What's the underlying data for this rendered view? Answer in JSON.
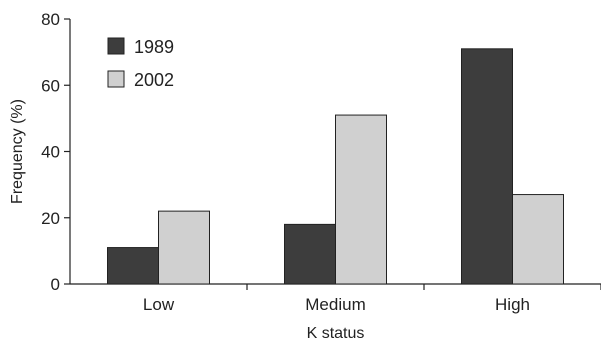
{
  "chart_data": {
    "type": "bar",
    "categories": [
      "Low",
      "Medium",
      "High"
    ],
    "series": [
      {
        "name": "1989",
        "values": [
          11,
          18,
          71
        ],
        "color": "#3d3d3d"
      },
      {
        "name": "2002",
        "values": [
          22,
          51,
          27
        ],
        "color": "#d0d0d0"
      }
    ],
    "title": "",
    "xlabel": "K status",
    "ylabel": "Frequency (%)",
    "ylim": [
      0,
      80
    ],
    "yticks": [
      0,
      20,
      40,
      60,
      80
    ],
    "legend": "top-left",
    "grid": false
  }
}
